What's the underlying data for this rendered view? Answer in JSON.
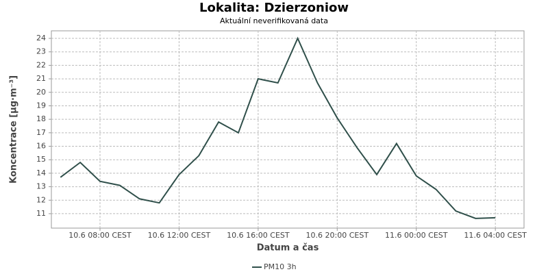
{
  "chart_data": {
    "type": "line",
    "title": "Lokalita: Dzierzoniow",
    "subtitle": "Aktuální neverifikovaná data",
    "x_label": "Datum a čas",
    "y_label": "Koncentrace [µg·m⁻³]",
    "x": [
      6,
      7,
      8,
      9,
      10,
      11,
      12,
      13,
      14,
      15,
      16,
      17,
      18,
      19,
      20,
      21,
      22,
      23,
      24,
      25,
      26,
      27,
      28
    ],
    "series": [
      {
        "name": "PM10 3h",
        "color": "#2f4f4a",
        "values": [
          13.7,
          14.8,
          13.4,
          13.1,
          12.1,
          11.8,
          13.9,
          15.3,
          17.8,
          17.0,
          21.0,
          20.7,
          24.0,
          20.7,
          18.1,
          15.9,
          13.9,
          16.2,
          13.8,
          12.8,
          11.2,
          10.65,
          10.7
        ]
      }
    ],
    "xlim": [
      5.54,
      29.45
    ],
    "xticks": [
      {
        "value": 8,
        "label": "10.6 08:00 CEST"
      },
      {
        "value": 12,
        "label": "10.6 12:00 CEST"
      },
      {
        "value": 16,
        "label": "10.6 16:00 CEST"
      },
      {
        "value": 20,
        "label": "10.6 20:00 CEST"
      },
      {
        "value": 24,
        "label": "11.6 00:00 CEST"
      },
      {
        "value": 28,
        "label": "11.6 04:00 CEST"
      }
    ],
    "ylim": [
      9.93,
      24.56
    ],
    "yticks": [
      11,
      12,
      13,
      14,
      15,
      16,
      17,
      18,
      19,
      20,
      21,
      22,
      23,
      24
    ],
    "grid": true
  }
}
